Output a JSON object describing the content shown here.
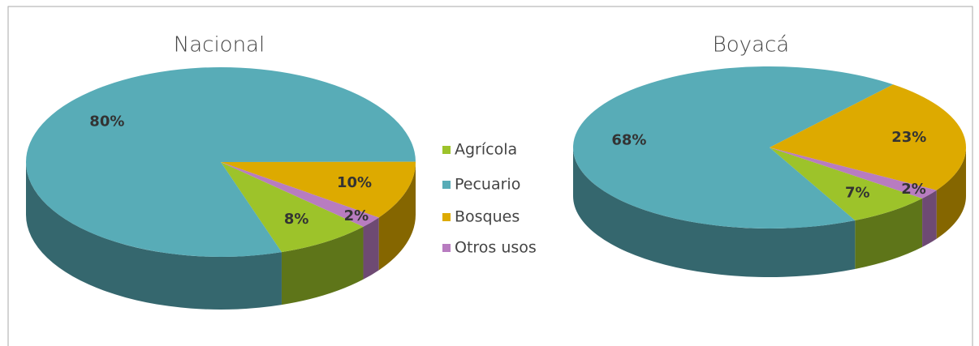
{
  "chart_data": [
    {
      "type": "pie",
      "title": "Nacional",
      "categories": [
        "Agrícola",
        "Pecuario",
        "Bosques",
        "Otros usos"
      ],
      "values": [
        8,
        80,
        10,
        2
      ],
      "value_labels": [
        "8%",
        "80%",
        "10%",
        "2%"
      ],
      "colors": [
        "#9dc32a",
        "#58acb7",
        "#ddaa00",
        "#b87cc0"
      ]
    },
    {
      "type": "pie",
      "title": "Boyacá",
      "categories": [
        "Agrícola",
        "Pecuario",
        "Bosques",
        "Otros usos"
      ],
      "values": [
        7,
        68,
        23,
        2
      ],
      "value_labels": [
        "7%",
        "68%",
        "23%",
        "2%"
      ],
      "colors": [
        "#9dc32a",
        "#58acb7",
        "#ddaa00",
        "#b87cc0"
      ]
    }
  ]
}
